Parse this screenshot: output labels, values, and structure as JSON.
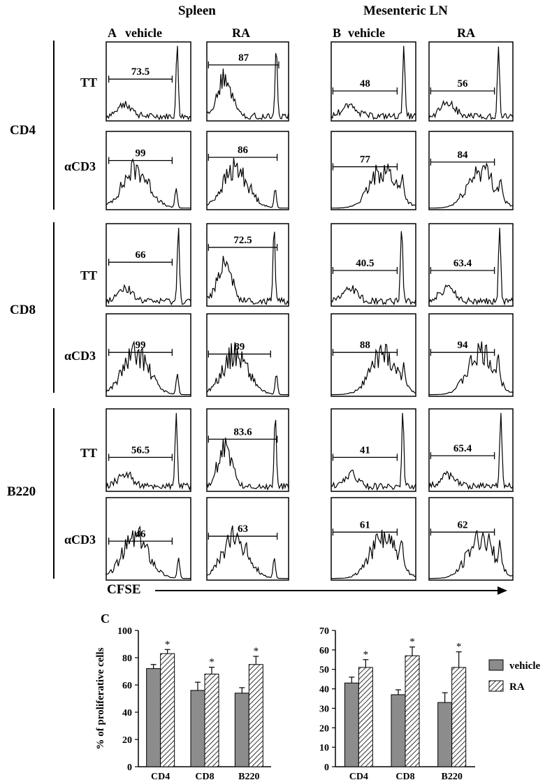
{
  "headers": {
    "spleen": "Spleen",
    "mln": "Mesenteric LN",
    "panel_a": "A",
    "panel_b": "B",
    "panel_c": "C",
    "col_vehicle_a": "vehicle",
    "col_ra_a": "RA",
    "col_vehicle_b": "vehicle",
    "col_ra_b": "RA"
  },
  "groups": [
    "CD4",
    "CD8",
    "B220"
  ],
  "row_labels": [
    "TT",
    "αCD3",
    "TT",
    "αCD3",
    "TT",
    "αCD3"
  ],
  "x_axis_label": "CFSE",
  "histograms": [
    {
      "values": [
        "73.5",
        "87",
        "48",
        "56"
      ]
    },
    {
      "values": [
        "99",
        "86",
        "77",
        "84"
      ]
    },
    {
      "values": [
        "66",
        "72.5",
        "40.5",
        "63.4"
      ]
    },
    {
      "values": [
        "99",
        "89",
        "88",
        "94"
      ]
    },
    {
      "values": [
        "56.5",
        "83.6",
        "41",
        "65.4"
      ]
    },
    {
      "values": [
        "46",
        "63",
        "61",
        "62"
      ]
    }
  ],
  "chart_data": [
    {
      "type": "bar",
      "categories": [
        "CD4",
        "CD8",
        "B220"
      ],
      "ylabel": "% of proliferative cells",
      "ylim": [
        0,
        100
      ],
      "yticks": [
        0,
        20,
        40,
        60,
        80,
        100
      ],
      "series": [
        {
          "name": "vehicle",
          "values": [
            72,
            56,
            54
          ],
          "errors": [
            3,
            6,
            4
          ],
          "pattern": "solid gray"
        },
        {
          "name": "RA",
          "values": [
            83,
            68,
            75
          ],
          "errors": [
            3,
            5,
            6
          ],
          "pattern": "hatched"
        }
      ],
      "significance": [
        "*",
        "*",
        "*"
      ]
    },
    {
      "type": "bar",
      "categories": [
        "CD4",
        "CD8",
        "B220"
      ],
      "ylim": [
        0,
        70
      ],
      "yticks": [
        0,
        10,
        20,
        30,
        40,
        50,
        60,
        70
      ],
      "series": [
        {
          "name": "vehicle",
          "values": [
            43,
            37,
            33
          ],
          "errors": [
            3,
            2.5,
            5
          ],
          "pattern": "solid gray"
        },
        {
          "name": "RA",
          "values": [
            51,
            57,
            51
          ],
          "errors": [
            4,
            4.5,
            8
          ],
          "pattern": "hatched"
        }
      ],
      "significance": [
        "*",
        "*",
        "*"
      ]
    }
  ],
  "legend": {
    "vehicle": "vehicle",
    "ra": "RA"
  }
}
